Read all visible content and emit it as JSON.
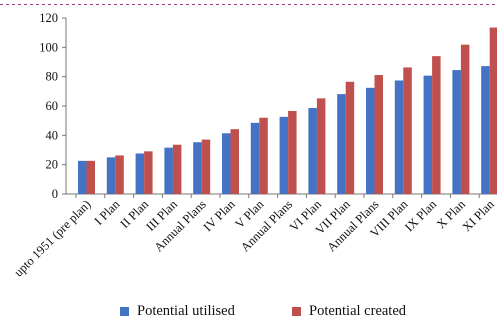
{
  "chart_data": {
    "type": "bar",
    "categories": [
      "upto 1951 (pre plan)",
      "I Plan",
      "II Plan",
      "III Plan",
      "Annual Plans",
      "IV Plan",
      "V Plan",
      "Annual Plans",
      "VI Plan",
      "VII Plan",
      "Annual Plans",
      "VIII Plan",
      "IX Plan",
      "X Plan",
      "XI Plan"
    ],
    "series": [
      {
        "name": "Potential utilised",
        "color": "#4472c4",
        "values": [
          22.6,
          25.0,
          27.6,
          31.6,
          35.3,
          41.4,
          48.5,
          52.6,
          58.6,
          68.1,
          72.4,
          77.4,
          80.7,
          84.5,
          87.2
        ]
      },
      {
        "name": "Potential created",
        "color": "#c0504d",
        "values": [
          22.6,
          26.3,
          29.1,
          33.6,
          37.1,
          44.2,
          52.0,
          56.6,
          65.2,
          76.5,
          81.1,
          86.3,
          94.0,
          101.8,
          113.5
        ]
      }
    ],
    "yticks": [
      "0",
      "20",
      "40",
      "60",
      "80",
      "100",
      "120"
    ],
    "ylim": [
      0,
      120
    ],
    "title": "",
    "xlabel": "",
    "ylabel": "",
    "grid": false,
    "legend_position": "bottom"
  },
  "legend": {
    "utilised_label": "Potential utilised",
    "created_label": "Potential created"
  }
}
